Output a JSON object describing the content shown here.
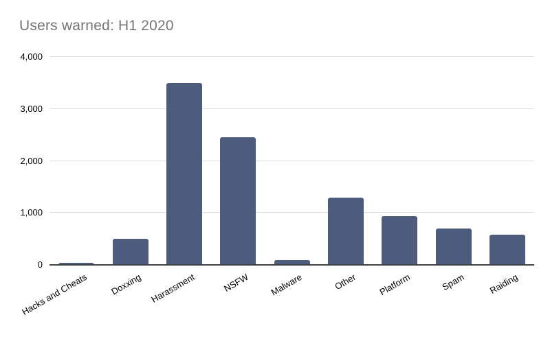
{
  "title": "Users warned: H1 2020",
  "colors": {
    "background": "#ffffff",
    "bar": "#4d5b7c",
    "title_text": "#757575",
    "axis_text": "#000000",
    "gridline": "#dcdcdc",
    "baseline": "#424242"
  },
  "chart_data": {
    "type": "bar",
    "title": "Users warned: H1 2020",
    "categories": [
      "Hacks and Cheats",
      "Doxxing",
      "Harassment",
      "NSFW",
      "Malware",
      "Other",
      "Platform",
      "Spam",
      "Raiding"
    ],
    "values": [
      45,
      500,
      3500,
      2450,
      90,
      1290,
      940,
      705,
      585
    ],
    "xlabel": "",
    "ylabel": "",
    "ylim": [
      0,
      4000
    ],
    "yticks": [
      0,
      1000,
      2000,
      3000,
      4000
    ],
    "ytick_labels": [
      "0",
      "1,000",
      "2,000",
      "3,000",
      "4,000"
    ],
    "grid": true,
    "legend": "none",
    "x_label_rotation_deg": -30
  }
}
